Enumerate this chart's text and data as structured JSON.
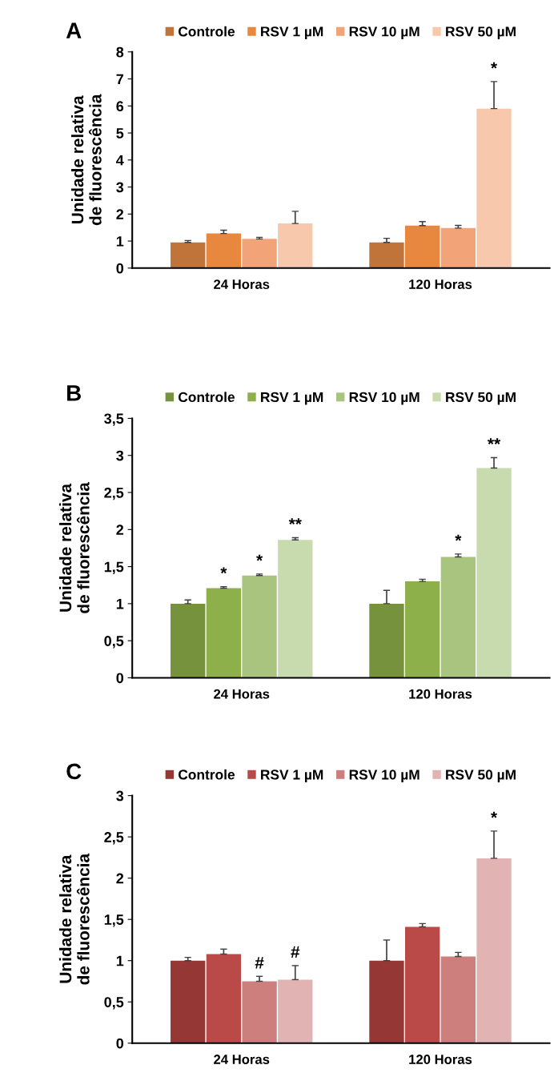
{
  "chart_data": [
    {
      "type": "bar",
      "title": "A",
      "ylabel": "Unidade relativa\nde fluorescência",
      "categories": [
        "24 Horas",
        "120 Horas"
      ],
      "ylim": [
        0,
        8
      ],
      "yticks": [
        0,
        1,
        2,
        3,
        4,
        5,
        6,
        7,
        8
      ],
      "legend": "top",
      "grid": false,
      "series": [
        {
          "name": "Controle",
          "color": "#c0743a",
          "values": [
            0.95,
            0.95
          ],
          "errors": [
            [
              0.95,
              1.02
            ],
            [
              0.95,
              1.1
            ]
          ],
          "value_labels": [
            null,
            null
          ]
        },
        {
          "name": "RSV 1 µM",
          "color": "#e8883e",
          "values": [
            1.28,
            1.57
          ],
          "errors": [
            [
              1.28,
              1.4
            ],
            [
              1.57,
              1.72
            ]
          ],
          "value_labels": [
            null,
            null
          ]
        },
        {
          "name": "RSV 10 µM",
          "color": "#f2a378",
          "values": [
            1.08,
            1.48
          ],
          "errors": [
            [
              1.08,
              1.14
            ],
            [
              1.48,
              1.58
            ]
          ],
          "value_labels": [
            null,
            null
          ]
        },
        {
          "name": "RSV 50 µM",
          "color": "#f7c8ac",
          "values": [
            1.65,
            5.9
          ],
          "errors": [
            [
              1.65,
              2.1
            ],
            [
              5.9,
              6.9
            ]
          ],
          "value_labels": [
            null,
            "*"
          ]
        }
      ]
    },
    {
      "type": "bar",
      "title": "B",
      "ylabel": "Unidade relativa\nde fluorescência",
      "categories": [
        "24 Horas",
        "120 Horas"
      ],
      "ylim": [
        0,
        3.5
      ],
      "yticks": [
        0,
        {
          "value": 0.5,
          "label": "0,5"
        },
        1,
        {
          "value": 1.5,
          "label": "1,5"
        },
        2,
        {
          "value": 2.5,
          "label": "2,5"
        },
        3,
        {
          "value": 3.5,
          "label": "3,5"
        }
      ],
      "legend": "top",
      "grid": false,
      "series": [
        {
          "name": "Controle",
          "color": "#76923c",
          "values": [
            1.0,
            1.0
          ],
          "errors": [
            [
              1.0,
              1.05
            ],
            [
              1.0,
              1.18
            ]
          ],
          "value_labels": [
            null,
            null
          ]
        },
        {
          "name": "RSV 1 µM",
          "color": "#8db04a",
          "values": [
            1.21,
            1.3
          ],
          "errors": [
            [
              1.21,
              1.23
            ],
            [
              1.3,
              1.33
            ]
          ],
          "value_labels": [
            "*",
            null
          ]
        },
        {
          "name": "RSV 10 µM",
          "color": "#a9c47f",
          "values": [
            1.38,
            1.63
          ],
          "errors": [
            [
              1.38,
              1.4
            ],
            [
              1.63,
              1.67
            ]
          ],
          "value_labels": [
            "*",
            "*"
          ]
        },
        {
          "name": "RSV 50 µM",
          "color": "#c8dbae",
          "values": [
            1.86,
            2.83
          ],
          "errors": [
            [
              1.86,
              1.89
            ],
            [
              2.83,
              2.97
            ]
          ],
          "value_labels": [
            "**",
            "**"
          ]
        }
      ]
    },
    {
      "type": "bar",
      "title": "C",
      "ylabel": "Unidade relativa\nde fluorescência",
      "categories": [
        "24 Horas",
        "120 Horas"
      ],
      "ylim": [
        0,
        3
      ],
      "yticks": [
        0,
        {
          "value": 0.5,
          "label": "0,5"
        },
        1,
        {
          "value": 1.5,
          "label": "1,5"
        },
        2,
        {
          "value": 2.5,
          "label": "2,5"
        },
        3
      ],
      "legend": "top",
      "grid": false,
      "series": [
        {
          "name": "Controle",
          "color": "#953735",
          "values": [
            1.0,
            1.0
          ],
          "errors": [
            [
              1.0,
              1.04
            ],
            [
              1.0,
              1.25
            ]
          ],
          "value_labels": [
            null,
            null
          ]
        },
        {
          "name": "RSV 1 µM",
          "color": "#b94a48",
          "values": [
            1.08,
            1.41
          ],
          "errors": [
            [
              1.08,
              1.14
            ],
            [
              1.41,
              1.45
            ]
          ],
          "value_labels": [
            null,
            null
          ]
        },
        {
          "name": "RSV 10 µM",
          "color": "#cd7f7e",
          "values": [
            0.75,
            1.05
          ],
          "errors": [
            [
              0.75,
              0.81
            ],
            [
              1.05,
              1.1
            ]
          ],
          "value_labels": [
            "#",
            null
          ]
        },
        {
          "name": "RSV 50 µM",
          "color": "#e2b3b3",
          "values": [
            0.77,
            2.24
          ],
          "errors": [
            [
              0.77,
              0.94
            ],
            [
              2.24,
              2.57
            ]
          ],
          "value_labels": [
            "#",
            "*"
          ]
        }
      ]
    }
  ]
}
